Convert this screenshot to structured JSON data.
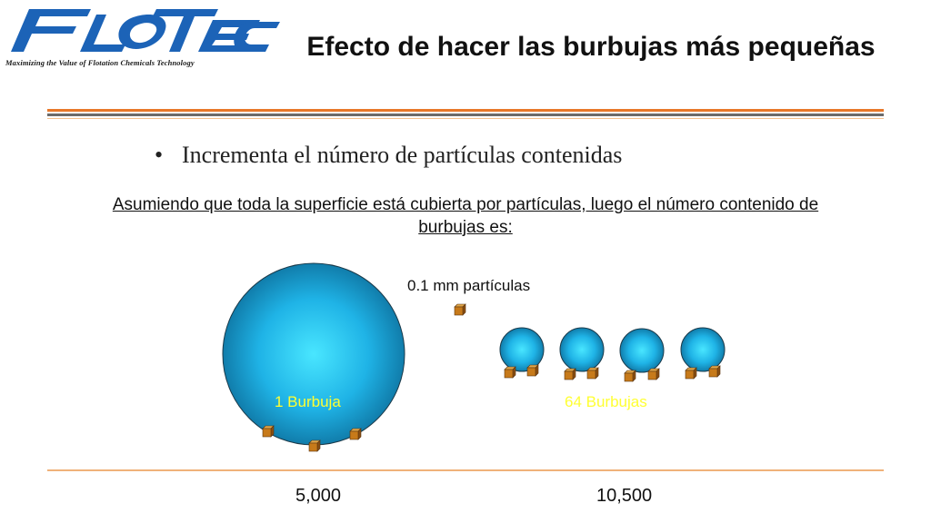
{
  "logo": {
    "name": "FloTec",
    "tagline": "Maximizing the Value of Flotation Chemicals Technology",
    "color": "#1c63b7"
  },
  "slide": {
    "title": "Efecto de hacer las burbujas más pequeñas",
    "bullet": "Incrementa el número de partículas contenidas",
    "note": "Asumiendo que toda la superficie está cubierta por partículas, luego el número contenido de burbujas es:"
  },
  "diagram": {
    "particle_label": "0.1 mm partículas",
    "big_bubble_label": "1 Burbuja",
    "small_bubbles_label": "64 Burbujas",
    "big_count": "5,000",
    "small_count": "10,500",
    "bubble_color": "#1aa6dc",
    "particle_color": "#c77a1a",
    "label_color": "#ffff33"
  }
}
